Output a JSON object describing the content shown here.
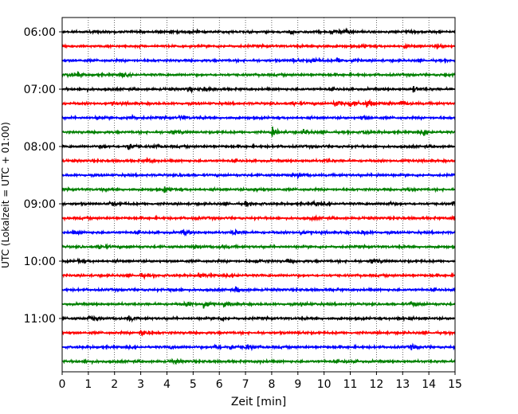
{
  "chart_data": {
    "type": "line",
    "title": "",
    "xlabel": "Zeit  [min]",
    "ylabel": "UTC (Lokalzeit = UTC + 01:00)",
    "xlim": [
      0,
      15
    ],
    "x_ticks": [
      0,
      1,
      2,
      3,
      4,
      5,
      6,
      7,
      8,
      9,
      10,
      11,
      12,
      13,
      14,
      15
    ],
    "x_tick_labels": [
      "0",
      "1",
      "2",
      "3",
      "4",
      "5",
      "6",
      "7",
      "8",
      "9",
      "10",
      "11",
      "12",
      "13",
      "14",
      "15"
    ],
    "y_tick_labels": [
      "06:00",
      "07:00",
      "08:00",
      "09:00",
      "10:00",
      "11:00"
    ],
    "grid": "vertical dotted",
    "trace_minutes": 15,
    "trace_colors": [
      "#000000",
      "#ff0000",
      "#0000ff",
      "#008000"
    ],
    "series": [
      {
        "start": "06:00",
        "color": "#000000",
        "events": [
          [
            8.7,
            0.8
          ],
          [
            10.3,
            0.9
          ],
          [
            10.8,
            0.8
          ],
          [
            5.0,
            0.4
          ]
        ]
      },
      {
        "start": "06:15",
        "color": "#ff0000",
        "events": [
          [
            14.3,
            0.7
          ],
          [
            9.8,
            0.4
          ],
          [
            13.0,
            0.5
          ],
          [
            11.5,
            0.4
          ]
        ]
      },
      {
        "start": "06:30",
        "color": "#0000ff",
        "events": [
          [
            9.5,
            1.2
          ],
          [
            10.5,
            1.0
          ],
          [
            8.8,
            0.6
          ],
          [
            11.0,
            0.6
          ]
        ]
      },
      {
        "start": "06:45",
        "color": "#008000",
        "events": [
          [
            0.6,
            0.8
          ],
          [
            2.2,
            0.7
          ],
          [
            0.2,
            0.4
          ],
          [
            14.6,
            0.5
          ]
        ]
      },
      {
        "start": "07:00",
        "color": "#000000",
        "events": [
          [
            4.8,
            0.9
          ],
          [
            5.4,
            0.6
          ],
          [
            13.4,
            0.9
          ],
          [
            0.8,
            0.3
          ]
        ]
      },
      {
        "start": "07:15",
        "color": "#ff0000",
        "events": [
          [
            10.4,
            1.4
          ],
          [
            11.0,
            1.3
          ],
          [
            11.6,
            1.7
          ],
          [
            12.9,
            1.1
          ],
          [
            8.8,
            0.8
          ],
          [
            1.9,
            0.6
          ]
        ]
      },
      {
        "start": "07:30",
        "color": "#0000ff",
        "events": [
          [
            2.5,
            1.1
          ],
          [
            1.3,
            0.6
          ],
          [
            4.5,
            0.7
          ],
          [
            11.4,
            0.9
          ]
        ]
      },
      {
        "start": "07:45",
        "color": "#008000",
        "events": [
          [
            4.2,
            1.0
          ],
          [
            8.0,
            1.3
          ],
          [
            9.2,
            1.0
          ],
          [
            13.8,
            0.8
          ],
          [
            11.5,
            0.7
          ]
        ]
      },
      {
        "start": "08:00",
        "color": "#000000",
        "events": [
          [
            2.5,
            1.5
          ],
          [
            1.5,
            0.5
          ],
          [
            3.5,
            0.4
          ]
        ]
      },
      {
        "start": "08:15",
        "color": "#ff0000",
        "events": [
          [
            3.2,
            0.8
          ],
          [
            10.0,
            0.4
          ],
          [
            13.0,
            0.4
          ]
        ]
      },
      {
        "start": "08:30",
        "color": "#0000ff",
        "events": [
          [
            9.0,
            0.6
          ],
          [
            4.5,
            0.3
          ],
          [
            12.0,
            0.3
          ]
        ]
      },
      {
        "start": "08:45",
        "color": "#008000",
        "events": [
          [
            3.9,
            1.0
          ],
          [
            7.3,
            0.8
          ],
          [
            13.2,
            0.5
          ],
          [
            1.5,
            0.3
          ]
        ]
      },
      {
        "start": "09:00",
        "color": "#000000",
        "events": [
          [
            1.8,
            0.9
          ],
          [
            7.0,
            0.7
          ],
          [
            9.6,
            0.7
          ],
          [
            12.4,
            0.7
          ],
          [
            14.9,
            0.9
          ]
        ]
      },
      {
        "start": "09:15",
        "color": "#ff0000",
        "events": [
          [
            14.9,
            0.8
          ],
          [
            5.0,
            0.3
          ],
          [
            9.5,
            0.3
          ]
        ]
      },
      {
        "start": "09:30",
        "color": "#0000ff",
        "events": [
          [
            4.6,
            1.0
          ],
          [
            6.5,
            1.0
          ],
          [
            9.1,
            0.8
          ],
          [
            11.4,
            0.8
          ],
          [
            0.4,
            0.6
          ]
        ]
      },
      {
        "start": "09:45",
        "color": "#008000",
        "events": [
          [
            1.4,
            1.2
          ],
          [
            5.0,
            0.7
          ],
          [
            6.0,
            0.7
          ],
          [
            2.5,
            0.4
          ]
        ]
      },
      {
        "start": "10:00",
        "color": "#000000",
        "events": [
          [
            11.8,
            1.2
          ],
          [
            7.4,
            0.7
          ],
          [
            0.6,
            0.4
          ],
          [
            8.6,
            0.4
          ]
        ]
      },
      {
        "start": "10:15",
        "color": "#ff0000",
        "events": [
          [
            5.2,
            1.0
          ],
          [
            3.0,
            0.6
          ],
          [
            6.6,
            0.3
          ]
        ]
      },
      {
        "start": "10:30",
        "color": "#0000ff",
        "events": [
          [
            6.6,
            1.0
          ],
          [
            4.1,
            0.5
          ],
          [
            10.2,
            0.3
          ]
        ]
      },
      {
        "start": "10:45",
        "color": "#008000",
        "events": [
          [
            5.4,
            1.5
          ],
          [
            4.7,
            0.8
          ],
          [
            6.2,
            0.7
          ],
          [
            9.1,
            0.8
          ],
          [
            13.3,
            1.1
          ]
        ]
      },
      {
        "start": "11:00",
        "color": "#000000",
        "events": [
          [
            1.0,
            0.9
          ],
          [
            2.5,
            1.0
          ],
          [
            12.8,
            0.8
          ],
          [
            6.0,
            0.4
          ]
        ]
      },
      {
        "start": "11:15",
        "color": "#ff0000",
        "events": [
          [
            3.0,
            1.2
          ],
          [
            9.0,
            0.3
          ],
          [
            12.0,
            0.3
          ]
        ]
      },
      {
        "start": "11:30",
        "color": "#0000ff",
        "events": [
          [
            5.8,
            1.0
          ],
          [
            6.4,
            0.9
          ],
          [
            7.0,
            1.1
          ],
          [
            13.3,
            0.8
          ],
          [
            4.1,
            0.5
          ]
        ]
      },
      {
        "start": "11:45",
        "color": "#008000",
        "events": [
          [
            4.2,
            0.9
          ],
          [
            0.9,
            0.4
          ],
          [
            7.4,
            0.4
          ],
          [
            10.8,
            0.4
          ]
        ]
      }
    ]
  }
}
